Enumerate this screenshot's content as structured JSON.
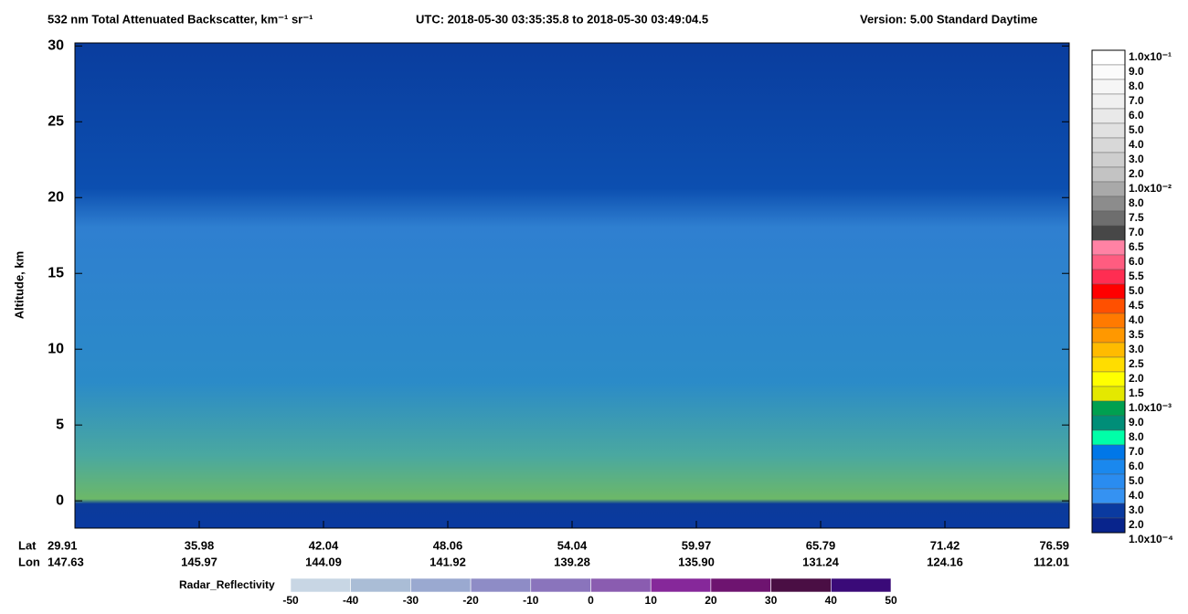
{
  "chart_data": {
    "type": "image",
    "title_parts": [
      "532 nm Total Attenuated Backscatter, km⁻¹ sr⁻¹",
      "UTC:  2018-05-30 03:35:35.8  to  2018-05-30 03:49:04.5",
      "Version: 5.00  Standard  Daytime"
    ],
    "y_label": "Altitude, km",
    "ylim": [
      -1.8,
      30.2
    ],
    "yticks": [
      0,
      5,
      10,
      15,
      20,
      25,
      30
    ],
    "x_row_labels": [
      "Lat",
      "Lon"
    ],
    "lat": [
      "29.91",
      "35.98",
      "42.04",
      "48.06",
      "54.04",
      "59.97",
      "65.79",
      "71.42",
      "76.59"
    ],
    "lon": [
      "147.63",
      "145.97",
      "144.09",
      "141.92",
      "139.28",
      "135.90",
      "131.24",
      "124.16",
      "112.01"
    ],
    "colorbar": {
      "labels": [
        "1.0x10⁻¹",
        "9.0",
        "8.0",
        "7.0",
        "6.0",
        "5.0",
        "4.0",
        "3.0",
        "2.0",
        "1.0x10⁻²",
        "8.0",
        "7.5",
        "7.0",
        "6.5",
        "6.0",
        "5.5",
        "5.0",
        "4.5",
        "4.0",
        "3.5",
        "3.0",
        "2.5",
        "2.0",
        "1.5",
        "1.0x10⁻³",
        "9.0",
        "8.0",
        "7.0",
        "6.0",
        "5.0",
        "4.0",
        "3.0",
        "2.0",
        "1.0x10⁻⁴"
      ],
      "colors": [
        "#ffffff",
        "#fbfbfb",
        "#f6f6f6",
        "#f0f0f0",
        "#e9e9e9",
        "#e1e1e1",
        "#d8d8d8",
        "#cecece",
        "#c3c3c3",
        "#a9a9a9",
        "#8c8c8c",
        "#6e6e6e",
        "#474747",
        "#ff82a4",
        "#ff5c80",
        "#ff2d52",
        "#ff0000",
        "#ff5000",
        "#ff7a00",
        "#ff9800",
        "#ffbb00",
        "#ffdd00",
        "#ffff00",
        "#e4e800",
        "#00a050",
        "#008e78",
        "#00ffa8",
        "#0077e8",
        "#1a88ee",
        "#2a8cf0",
        "#3592f2",
        "#0a3aa0",
        "#08248c"
      ]
    },
    "radar": {
      "label": "Radar_Reflectivity",
      "ticks": [
        -50,
        -40,
        -30,
        -20,
        -10,
        0,
        10,
        20,
        30,
        40,
        50
      ],
      "colors": [
        "#c8d6e4",
        "#aabdd6",
        "#9aa9d0",
        "#8e8cc6",
        "#8a74bc",
        "#8a5cb0",
        "#86289a",
        "#6e1470",
        "#4a0e44",
        "#3a0a78"
      ]
    }
  }
}
